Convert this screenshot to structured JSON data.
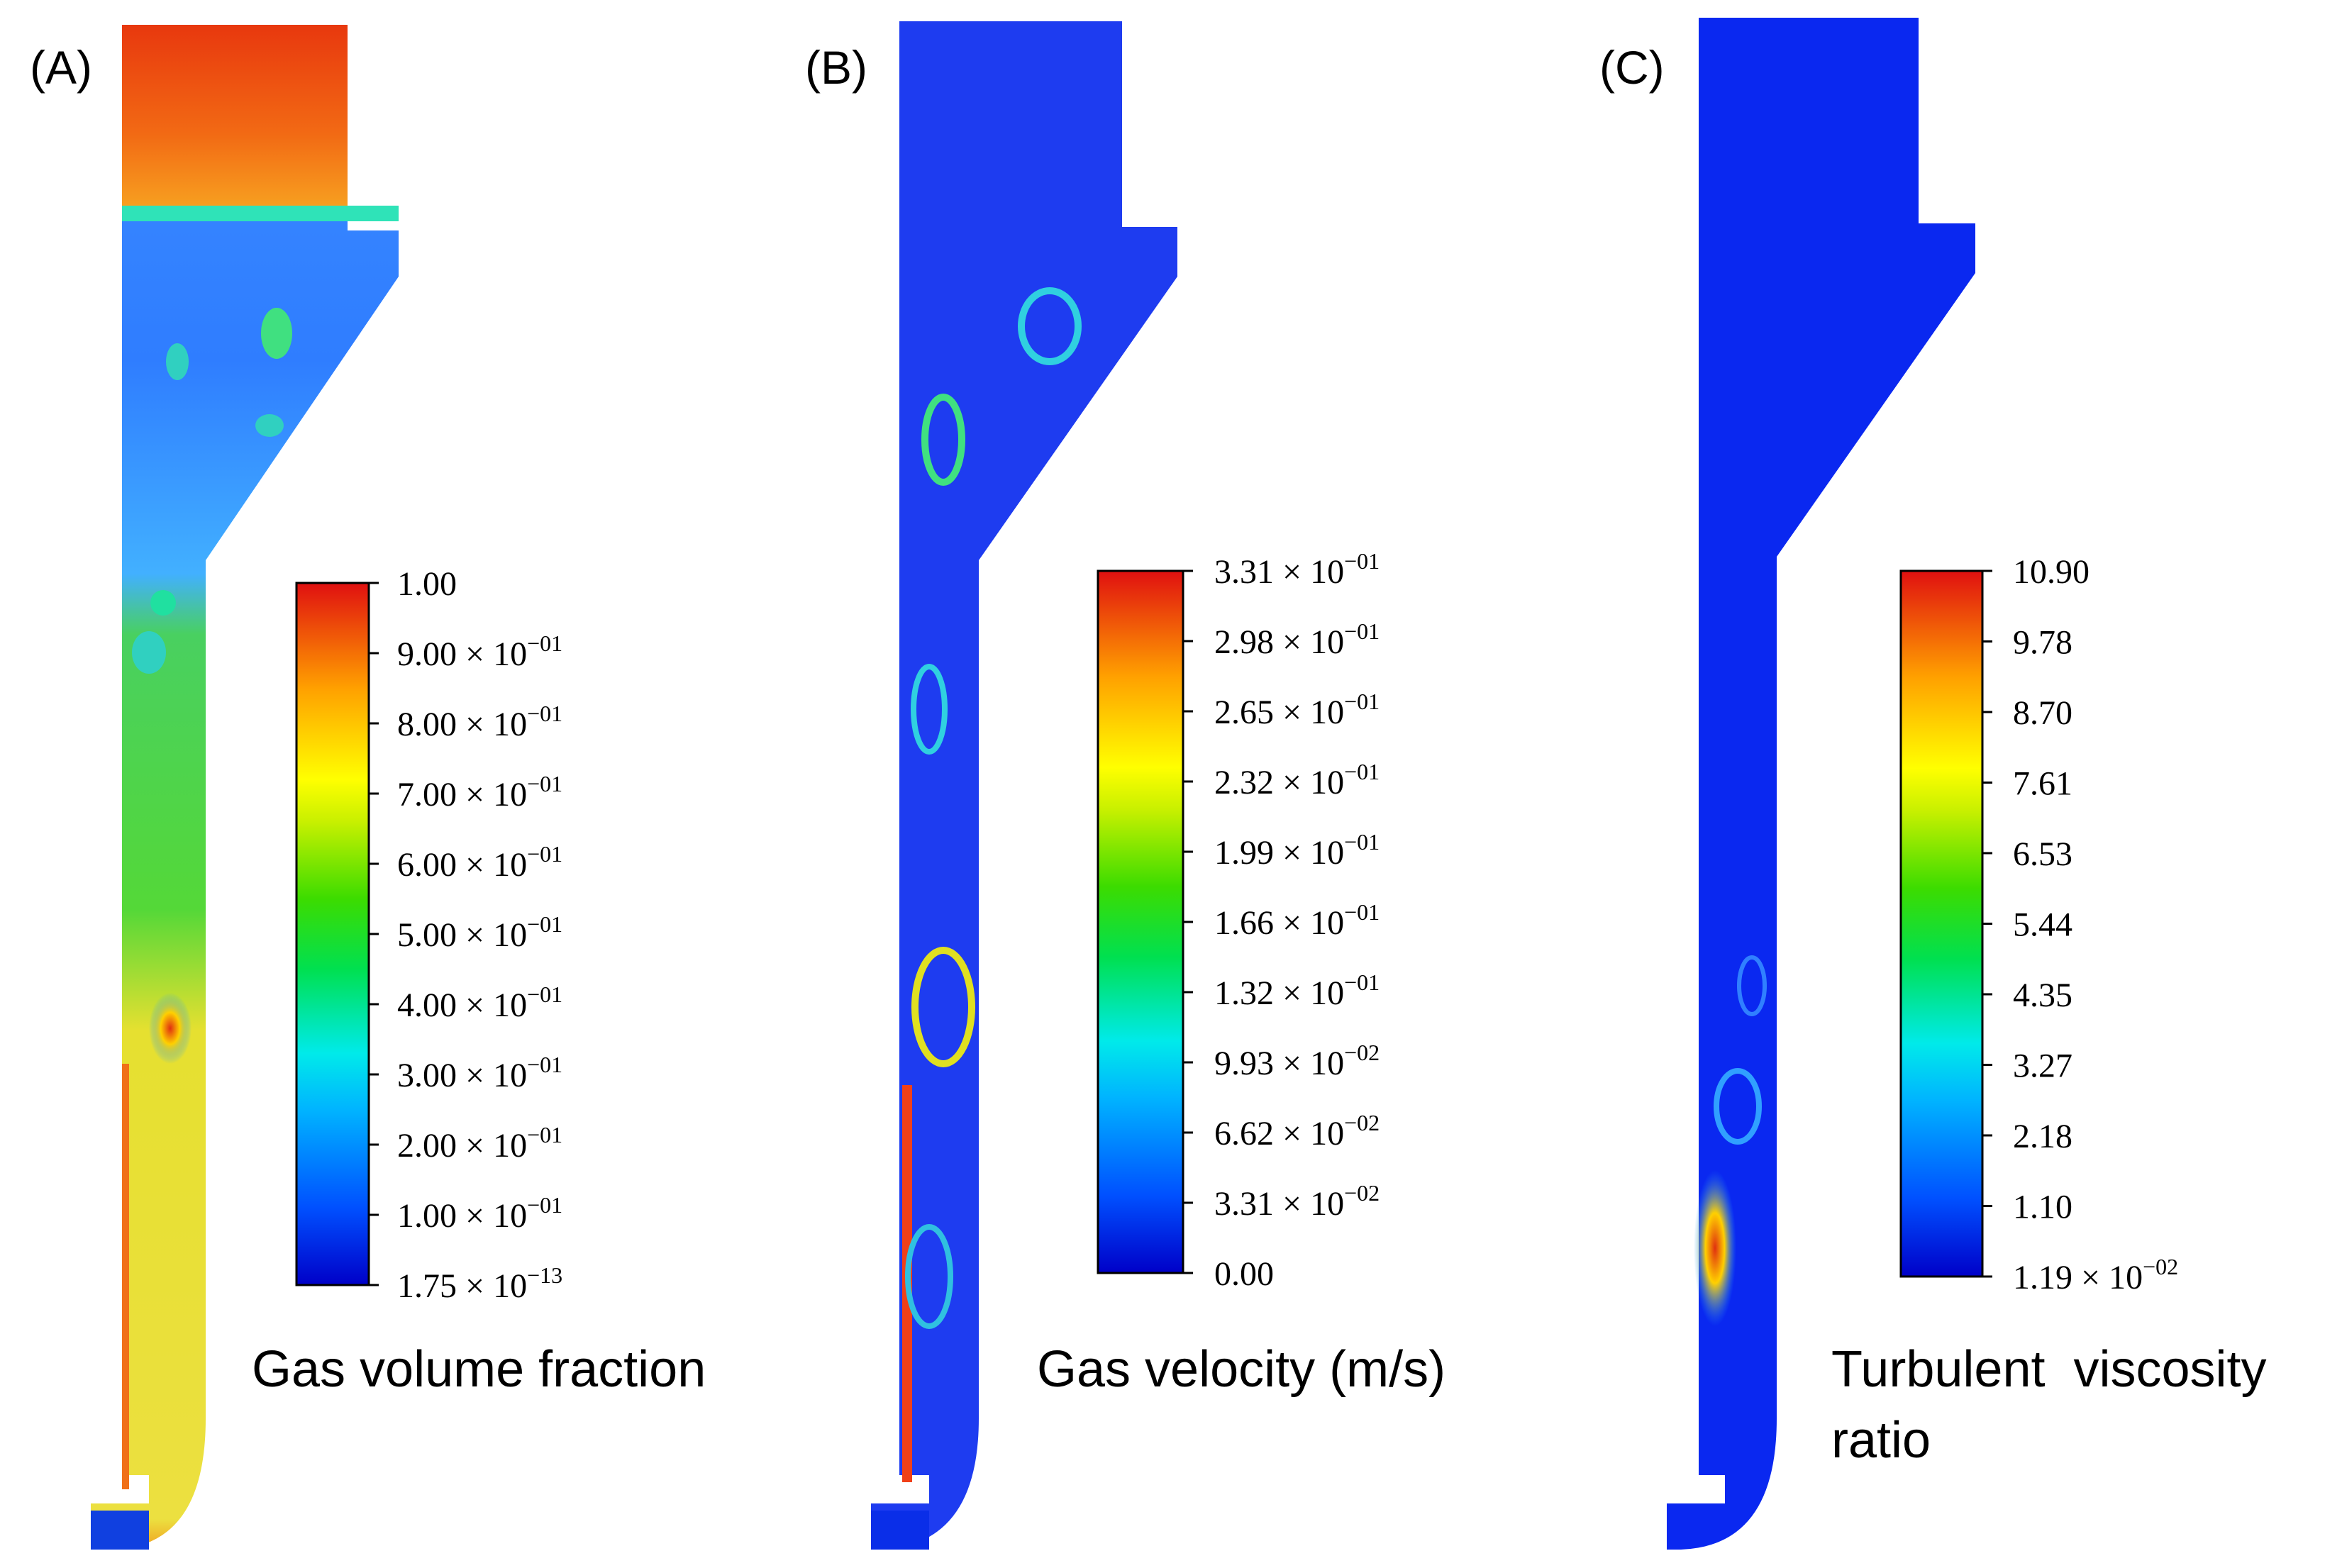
{
  "panels": [
    {
      "label": "(A)",
      "caption_lines": [
        "Gas volume fraction"
      ],
      "colorbar_ticks": [
        {
          "mantissa": "1.00",
          "exponent": ""
        },
        {
          "mantissa": "9.00",
          "exponent": "−01"
        },
        {
          "mantissa": "8.00",
          "exponent": "−01"
        },
        {
          "mantissa": "7.00",
          "exponent": "−01"
        },
        {
          "mantissa": "6.00",
          "exponent": "−01"
        },
        {
          "mantissa": "5.00",
          "exponent": "−01"
        },
        {
          "mantissa": "4.00",
          "exponent": "−01"
        },
        {
          "mantissa": "3.00",
          "exponent": "−01"
        },
        {
          "mantissa": "2.00",
          "exponent": "−01"
        },
        {
          "mantissa": "1.00",
          "exponent": "−01"
        },
        {
          "mantissa": "1.75",
          "exponent": "−13"
        }
      ]
    },
    {
      "label": "(B)",
      "caption_lines": [
        "Gas velocity (m/s)"
      ],
      "colorbar_ticks": [
        {
          "mantissa": "3.31",
          "exponent": "−01"
        },
        {
          "mantissa": "2.98",
          "exponent": "−01"
        },
        {
          "mantissa": "2.65",
          "exponent": "−01"
        },
        {
          "mantissa": "2.32",
          "exponent": "−01"
        },
        {
          "mantissa": "1.99",
          "exponent": "−01"
        },
        {
          "mantissa": "1.66",
          "exponent": "−01"
        },
        {
          "mantissa": "1.32",
          "exponent": "−01"
        },
        {
          "mantissa": "9.93",
          "exponent": "−02"
        },
        {
          "mantissa": "6.62",
          "exponent": "−02"
        },
        {
          "mantissa": "3.31",
          "exponent": "−02"
        },
        {
          "mantissa": "0.00",
          "exponent": ""
        }
      ]
    },
    {
      "label": "(C)",
      "caption_lines": [
        "Turbulent  viscosity",
        "ratio"
      ],
      "colorbar_ticks": [
        {
          "mantissa": "10.90",
          "exponent": ""
        },
        {
          "mantissa": "9.78",
          "exponent": ""
        },
        {
          "mantissa": "8.70",
          "exponent": ""
        },
        {
          "mantissa": "7.61",
          "exponent": ""
        },
        {
          "mantissa": "6.53",
          "exponent": ""
        },
        {
          "mantissa": "5.44",
          "exponent": ""
        },
        {
          "mantissa": "4.35",
          "exponent": ""
        },
        {
          "mantissa": "3.27",
          "exponent": ""
        },
        {
          "mantissa": "2.18",
          "exponent": ""
        },
        {
          "mantissa": "1.10",
          "exponent": ""
        },
        {
          "mantissa": "1.19",
          "exponent": "−02"
        }
      ]
    }
  ],
  "sci_format": {
    "times": "×",
    "base": "10"
  }
}
